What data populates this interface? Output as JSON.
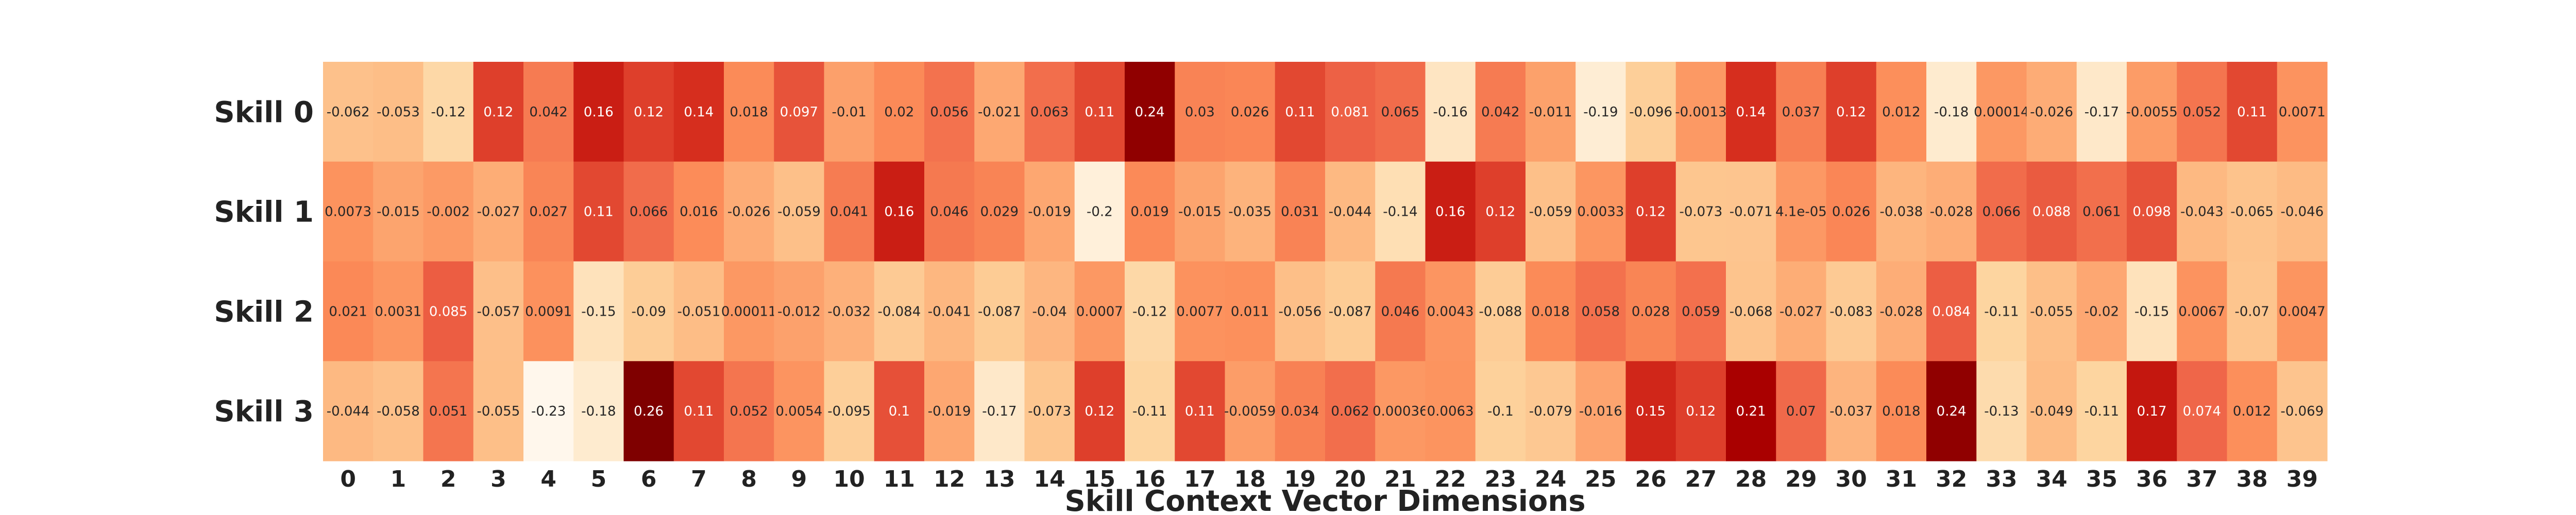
{
  "chart_data": {
    "type": "heatmap",
    "xlabel": "Skill Context Vector Dimensions",
    "row_labels": [
      "Skill 0",
      "Skill 1",
      "Skill 2",
      "Skill 3"
    ],
    "col_labels": [
      "0",
      "1",
      "2",
      "3",
      "4",
      "5",
      "6",
      "7",
      "8",
      "9",
      "10",
      "11",
      "12",
      "13",
      "14",
      "15",
      "16",
      "17",
      "18",
      "19",
      "20",
      "21",
      "22",
      "23",
      "24",
      "25",
      "26",
      "27",
      "28",
      "29",
      "30",
      "31",
      "32",
      "33",
      "34",
      "35",
      "36",
      "37",
      "38",
      "39"
    ],
    "colormap": "OrRd",
    "value_range": [
      -0.23,
      0.26
    ],
    "values": [
      [
        -0.062,
        -0.053,
        -0.12,
        0.12,
        0.042,
        0.16,
        0.12,
        0.14,
        0.018,
        0.097,
        -0.01,
        0.02,
        0.056,
        -0.021,
        0.063,
        0.11,
        0.24,
        0.03,
        0.026,
        0.11,
        0.081,
        0.065,
        -0.16,
        0.042,
        -0.011,
        -0.19,
        -0.096,
        -0.0013,
        0.14,
        0.037,
        0.12,
        0.012,
        -0.18,
        0.00014,
        -0.026,
        -0.17,
        -0.0055,
        0.052,
        0.11,
        0.0071
      ],
      [
        0.0073,
        -0.015,
        -0.002,
        -0.027,
        0.027,
        0.11,
        0.066,
        0.016,
        -0.026,
        -0.059,
        0.041,
        0.16,
        0.046,
        0.029,
        -0.019,
        -0.2,
        0.019,
        -0.015,
        -0.035,
        0.031,
        -0.044,
        -0.14,
        0.16,
        0.12,
        -0.059,
        0.0033,
        0.12,
        -0.073,
        -0.071,
        4.1e-05,
        0.026,
        -0.038,
        -0.028,
        0.066,
        0.088,
        0.061,
        0.098,
        -0.043,
        -0.065,
        -0.046
      ],
      [
        0.021,
        0.0031,
        0.085,
        -0.057,
        0.0091,
        -0.15,
        -0.09,
        -0.051,
        0.00011,
        -0.012,
        -0.032,
        -0.084,
        -0.041,
        -0.087,
        -0.04,
        0.0007,
        -0.12,
        0.0077,
        0.011,
        -0.056,
        -0.087,
        0.046,
        0.0043,
        -0.088,
        0.018,
        0.058,
        0.028,
        0.059,
        -0.068,
        -0.027,
        -0.083,
        -0.028,
        0.084,
        -0.11,
        -0.055,
        -0.02,
        -0.15,
        0.0067,
        -0.07,
        0.0047
      ],
      [
        -0.044,
        -0.058,
        0.051,
        -0.055,
        -0.23,
        -0.18,
        0.26,
        0.11,
        0.052,
        0.0054,
        -0.095,
        0.1,
        -0.019,
        -0.17,
        -0.073,
        0.12,
        -0.11,
        0.11,
        -0.0059,
        0.034,
        0.062,
        0.00036,
        0.0063,
        -0.1,
        -0.079,
        -0.016,
        0.15,
        0.12,
        0.21,
        0.07,
        -0.037,
        0.018,
        0.24,
        -0.13,
        -0.049,
        -0.11,
        0.17,
        0.074,
        0.012,
        -0.069
      ]
    ],
    "annotations": [
      [
        "-0.062",
        "-0.053",
        "-0.12",
        "0.12",
        "0.042",
        "0.16",
        "0.12",
        "0.14",
        "0.018",
        "0.097",
        "-0.01",
        "0.02",
        "0.056",
        "-0.021",
        "0.063",
        "0.11",
        "0.24",
        "0.03",
        "0.026",
        "0.11",
        "0.081",
        "0.065",
        "-0.16",
        "0.042",
        "-0.011",
        "-0.19",
        "-0.096",
        "-0.0013",
        "0.14",
        "0.037",
        "0.12",
        "0.012",
        "-0.18",
        "0.00014",
        "-0.026",
        "-0.17",
        "-0.0055",
        "0.052",
        "0.11",
        "0.0071"
      ],
      [
        "0.0073",
        "-0.015",
        "-0.002",
        "-0.027",
        "0.027",
        "0.11",
        "0.066",
        "0.016",
        "-0.026",
        "-0.059",
        "0.041",
        "0.16",
        "0.046",
        "0.029",
        "-0.019",
        "-0.2",
        "0.019",
        "-0.015",
        "-0.035",
        "0.031",
        "-0.044",
        "-0.14",
        "0.16",
        "0.12",
        "-0.059",
        "0.0033",
        "0.12",
        "-0.073",
        "-0.071",
        "4.1e-05",
        "0.026",
        "-0.038",
        "-0.028",
        "0.066",
        "0.088",
        "0.061",
        "0.098",
        "-0.043",
        "-0.065",
        "-0.046"
      ],
      [
        "0.021",
        "0.0031",
        "0.085",
        "-0.057",
        "0.0091",
        "-0.15",
        "-0.09",
        "-0.051",
        "0.00011",
        "-0.012",
        "-0.032",
        "-0.084",
        "-0.041",
        "-0.087",
        "-0.04",
        "0.0007",
        "-0.12",
        "0.0077",
        "0.011",
        "-0.056",
        "-0.087",
        "0.046",
        "0.0043",
        "-0.088",
        "0.018",
        "0.058",
        "0.028",
        "0.059",
        "-0.068",
        "-0.027",
        "-0.083",
        "-0.028",
        "0.084",
        "-0.11",
        "-0.055",
        "-0.02",
        "-0.15",
        "0.0067",
        "-0.07",
        "0.0047"
      ],
      [
        "-0.044",
        "-0.058",
        "0.051",
        "-0.055",
        "-0.23",
        "-0.18",
        "0.26",
        "0.11",
        "0.052",
        "0.0054",
        "-0.095",
        "0.1",
        "-0.019",
        "-0.17",
        "-0.073",
        "0.12",
        "-0.11",
        "0.11",
        "-0.0059",
        "0.034",
        "0.062",
        "0.00036",
        "0.0063",
        "-0.1",
        "-0.079",
        "-0.016",
        "0.15",
        "0.12",
        "0.21",
        "0.07",
        "-0.037",
        "0.018",
        "0.24",
        "-0.13",
        "-0.049",
        "-0.11",
        "0.17",
        "0.074",
        "0.012",
        "-0.069"
      ]
    ],
    "colorbar": false,
    "grid": false
  }
}
